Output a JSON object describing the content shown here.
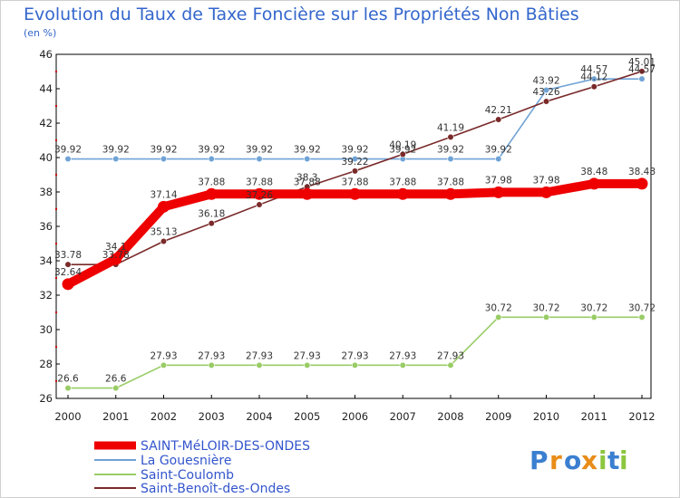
{
  "chart_data": {
    "type": "line",
    "title": "Evolution du Taux de Taxe Foncière sur les Propriétés Non Bâties",
    "unit_label": "(en %)",
    "xlabel": "",
    "ylabel": "(en %)",
    "ylim": [
      26,
      46
    ],
    "yticks": [
      26,
      28,
      30,
      32,
      34,
      36,
      38,
      40,
      42,
      44,
      46
    ],
    "categories": [
      "2000",
      "2001",
      "2002",
      "2003",
      "2004",
      "2005",
      "2006",
      "2007",
      "2008",
      "2009",
      "2010",
      "2011",
      "2012"
    ],
    "series": [
      {
        "name": "SAINT-MéLOIR-DES-ONDES",
        "color": "#ee0000",
        "values": [
          32.64,
          34.1,
          37.14,
          37.88,
          37.88,
          37.88,
          37.88,
          37.88,
          37.88,
          37.98,
          37.98,
          38.48,
          38.48
        ],
        "labels": [
          "32.64",
          "34.1",
          "37.14",
          "37.88",
          "37.88",
          "37.88",
          "37.88",
          "37.88",
          "37.88",
          "37.98",
          "37.98",
          "38.48",
          "38.48"
        ]
      },
      {
        "name": "La Gouesnière",
        "color": "#6fa3d6",
        "values": [
          39.92,
          39.92,
          39.92,
          39.92,
          39.92,
          39.92,
          39.92,
          39.92,
          39.92,
          39.92,
          43.92,
          44.57,
          44.57
        ],
        "labels": [
          "39.92",
          "39.92",
          "39.92",
          "39.92",
          "39.92",
          "39.92",
          "39.92",
          "39.92",
          "39.92",
          "39.92",
          "43.92",
          "44.57",
          "44.57"
        ]
      },
      {
        "name": "Saint-Coulomb",
        "color": "#99cc66",
        "values": [
          26.6,
          26.6,
          27.93,
          27.93,
          27.93,
          27.93,
          27.93,
          27.93,
          27.93,
          30.72,
          30.72,
          30.72,
          30.72
        ],
        "labels": [
          "26.6",
          "26.6",
          "27.93",
          "27.93",
          "27.93",
          "27.93",
          "27.93",
          "27.93",
          "27.93",
          "30.72",
          "30.72",
          "30.72",
          "30.72"
        ]
      },
      {
        "name": "Saint-Benoît-des-Ondes",
        "color": "#7a2a2a",
        "values": [
          33.78,
          33.78,
          35.13,
          36.18,
          37.26,
          38.3,
          39.22,
          40.19,
          41.19,
          42.21,
          43.26,
          44.12,
          45.01
        ],
        "labels": [
          "33.78",
          "33.78",
          "35.13",
          "36.18",
          "37.26",
          "38.3",
          "39.22",
          "40.19",
          "41.19",
          "42.21",
          "43.26",
          "44.12",
          "45.01"
        ]
      }
    ],
    "legend": "bottom-left"
  },
  "branding": {
    "logo_letters": [
      "P",
      "r",
      "o",
      "x",
      "i",
      "t",
      "i"
    ],
    "logo_colors": [
      "#3a7fd0",
      "#e88c1a",
      "#3a7fd0",
      "#e88c1a",
      "#8cc63e",
      "#3a7fd0",
      "#8cc63e"
    ]
  }
}
